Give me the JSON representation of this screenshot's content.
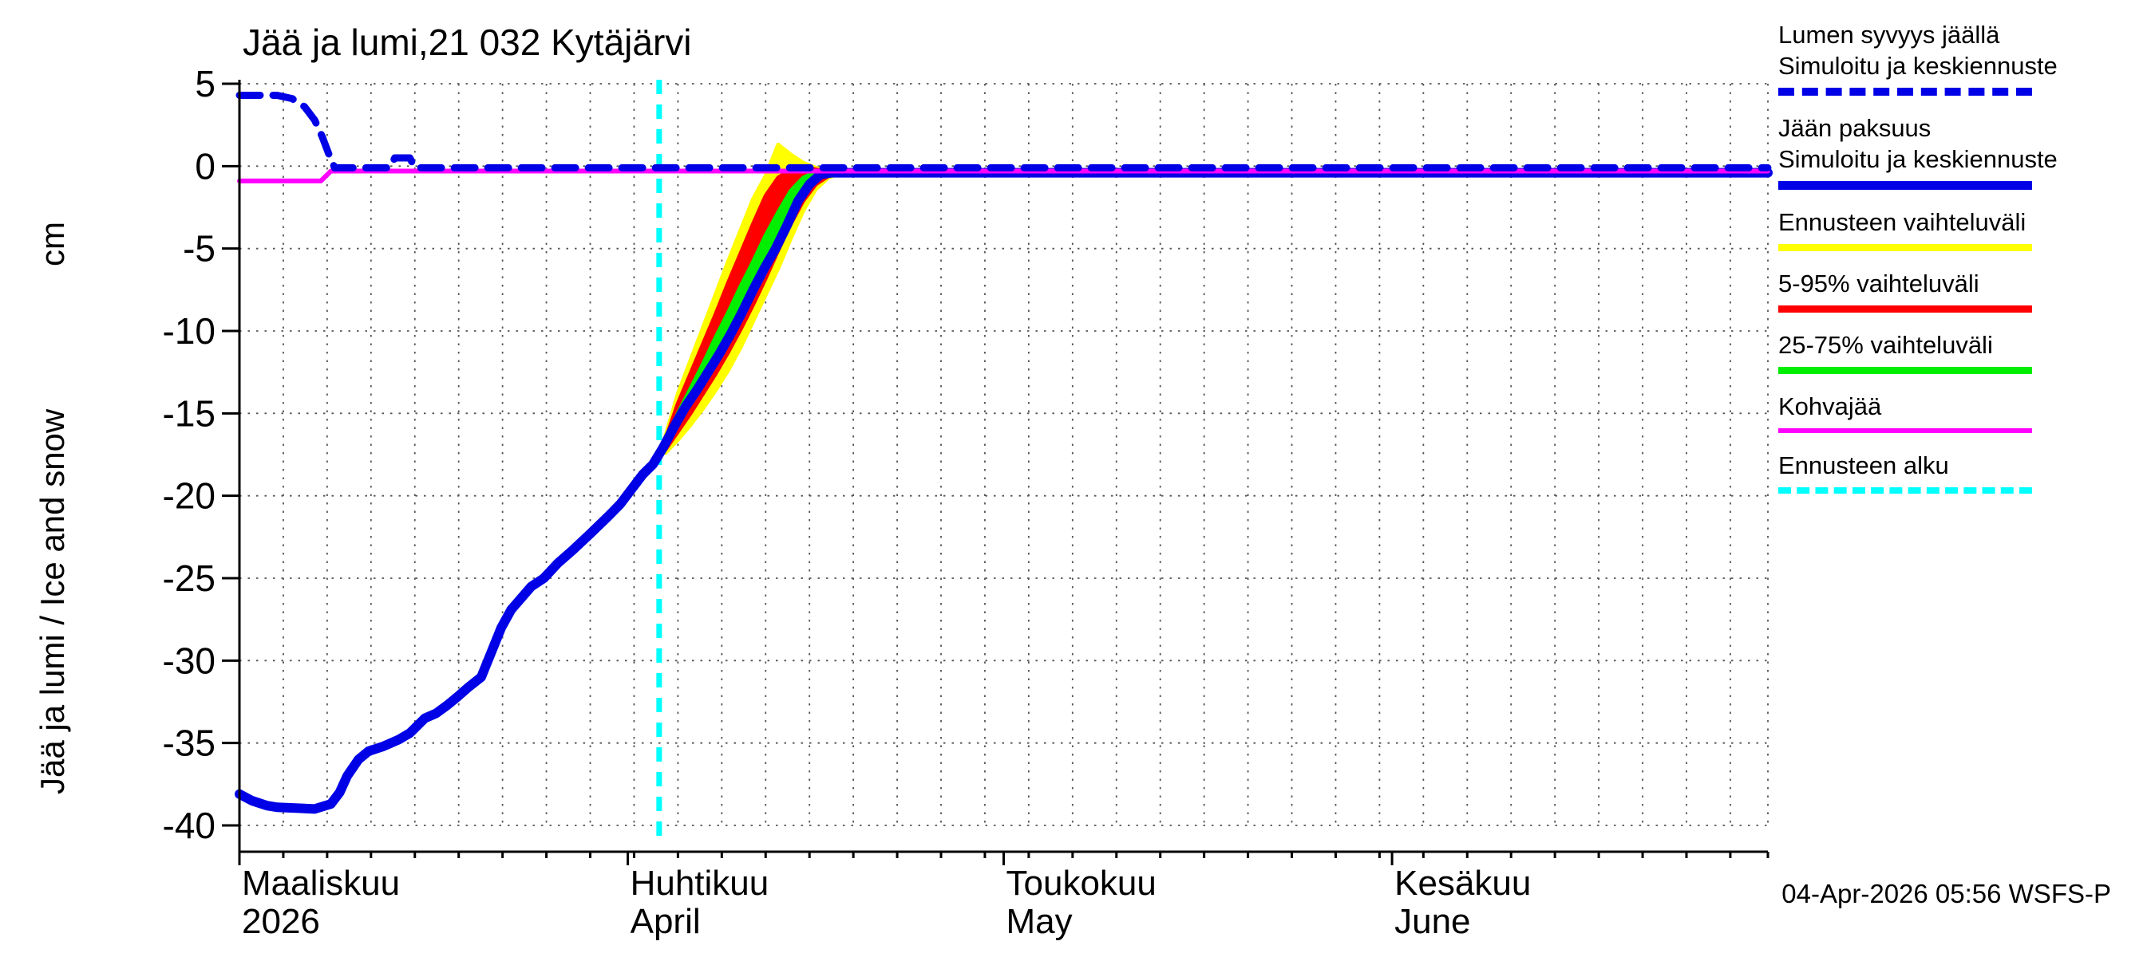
{
  "title": "Jää ja lumi,21 032 Kytäjärvi",
  "y_axis": {
    "label": "Jää ja lumi / Ice and snow",
    "unit": "cm"
  },
  "footer": {
    "timestamp": "04-Apr-2026 05:56 WSFS-P"
  },
  "colors": {
    "simulated_blue": "#0000e6",
    "kohvajaa_magenta": "#ff00ff",
    "range_yellow": "#ffff00",
    "range_red": "#ff0000",
    "range_green": "#00ee00",
    "forecast_start_cyan": "#00ffff",
    "axis_black": "#000000"
  },
  "legend": [
    {
      "title": "Lumen syvyys jäällä",
      "subtitle": "Simuloitu ja keskiennuste",
      "color": "#0000e6",
      "style": "dashed",
      "thickness": 10
    },
    {
      "title": "Jään paksuus",
      "subtitle": "Simuloitu ja keskiennuste",
      "color": "#0000e6",
      "style": "solid",
      "thickness": 11
    },
    {
      "title": "Ennusteen vaihteluväli",
      "color": "#ffff00",
      "style": "solid",
      "thickness": 9
    },
    {
      "title": "5-95% vaihteluväli",
      "color": "#ff0000",
      "style": "solid",
      "thickness": 9
    },
    {
      "title": "25-75% vaihteluväli",
      "color": "#00ee00",
      "style": "solid",
      "thickness": 9
    },
    {
      "title": "Kohvajää",
      "color": "#ff00ff",
      "style": "solid",
      "thickness": 6
    },
    {
      "title": "Ennusteen alku",
      "color": "#00ffff",
      "style": "dashed",
      "thickness": 8
    }
  ],
  "chart_data": {
    "type": "line",
    "title": "Jää ja lumi,21 032 Kytäjärvi",
    "ylabel": "Jää ja lumi / Ice and snow (cm)",
    "xlabel": "",
    "x_unit": "days from 2026-03-01",
    "x_range": [
      0,
      122
    ],
    "ylim": [
      -40,
      5
    ],
    "grid": true,
    "y_ticks": [
      5,
      0,
      -5,
      -10,
      -15,
      -20,
      -25,
      -30,
      -35,
      -40
    ],
    "x_ticks": [
      {
        "day": 0,
        "line1": "Maaliskuu",
        "line2": "2026"
      },
      {
        "day": 31,
        "line1": "Huhtikuu",
        "line2": "April"
      },
      {
        "day": 61,
        "line1": "Toukokuu",
        "line2": "May"
      },
      {
        "day": 92,
        "line1": "Kesäkuu",
        "line2": "June"
      }
    ],
    "forecast_start_day": 33.5,
    "series": [
      {
        "name": "ice-thickness-simulated",
        "label": "Jään paksuus - Simuloitu ja keskiennuste",
        "color": "#0000e6",
        "style": "solid",
        "width": 12,
        "points": [
          [
            0,
            -38.1
          ],
          [
            1,
            -38.5
          ],
          [
            2.2,
            -38.8
          ],
          [
            3,
            -38.9
          ],
          [
            6,
            -39
          ],
          [
            7.3,
            -38.7
          ],
          [
            8,
            -38
          ],
          [
            8.6,
            -37
          ],
          [
            9.5,
            -36
          ],
          [
            10.3,
            -35.5
          ],
          [
            11.5,
            -35.2
          ],
          [
            12.7,
            -34.8
          ],
          [
            13.6,
            -34.4
          ],
          [
            14.8,
            -33.5
          ],
          [
            15.7,
            -33.2
          ],
          [
            16.6,
            -32.7
          ],
          [
            17.4,
            -32.2
          ],
          [
            18.3,
            -31.6
          ],
          [
            19.3,
            -31
          ],
          [
            20.1,
            -29.5
          ],
          [
            20.9,
            -28
          ],
          [
            21.7,
            -26.9
          ],
          [
            22.5,
            -26.2
          ],
          [
            23.3,
            -25.5
          ],
          [
            24.3,
            -25
          ],
          [
            25.4,
            -24.1
          ],
          [
            26.6,
            -23.3
          ],
          [
            28,
            -22.3
          ],
          [
            29.5,
            -21.2
          ],
          [
            30.4,
            -20.5
          ],
          [
            31.3,
            -19.6
          ],
          [
            32.2,
            -18.7
          ],
          [
            33,
            -18.1
          ],
          [
            33.8,
            -17.1
          ],
          [
            34.7,
            -15.8
          ],
          [
            35.6,
            -14.6
          ],
          [
            36.5,
            -13.6
          ],
          [
            37.4,
            -12.5
          ],
          [
            38.3,
            -11.4
          ],
          [
            39.2,
            -10.2
          ],
          [
            40.1,
            -8.9
          ],
          [
            41,
            -7.5
          ],
          [
            41.9,
            -6.2
          ],
          [
            42.8,
            -5
          ],
          [
            43.7,
            -3.6
          ],
          [
            44.6,
            -2.1
          ],
          [
            45.5,
            -1.1
          ],
          [
            46.4,
            -0.5
          ],
          [
            47.3,
            -0.4
          ],
          [
            122,
            -0.4
          ]
        ]
      },
      {
        "name": "kohvajaa-frazil-ice",
        "label": "Kohvajää",
        "color": "#ff00ff",
        "style": "solid",
        "width": 6,
        "points": [
          [
            0,
            -0.9
          ],
          [
            6.5,
            -0.9
          ],
          [
            7.3,
            -0.3
          ],
          [
            122,
            -0.3
          ]
        ]
      },
      {
        "name": "snow-depth-on-ice-simulated",
        "label": "Lumen syvyys jäällä - Simuloitu ja keskiennuste",
        "color": "#0000e6",
        "style": "dashed",
        "width": 9,
        "points": [
          [
            0,
            4.3
          ],
          [
            3,
            4.3
          ],
          [
            4.2,
            4.1
          ],
          [
            5.2,
            3.6
          ],
          [
            6,
            2.8
          ],
          [
            6.6,
            1.8
          ],
          [
            7.1,
            0.8
          ],
          [
            7.6,
            -0.1
          ],
          [
            12,
            -0.1
          ],
          [
            12.4,
            0.5
          ],
          [
            13.6,
            0.5
          ],
          [
            14,
            -0.1
          ],
          [
            122,
            -0.1
          ]
        ]
      }
    ],
    "bands": [
      {
        "name": "ennusteen-vaihteluvali",
        "label": "Ennusteen vaihteluväli",
        "color": "#ffff00",
        "days": [
          34,
          35,
          36,
          37,
          38,
          39,
          40,
          41,
          42,
          43,
          44,
          45,
          46,
          47,
          48
        ],
        "upper": [
          -16.4,
          -13.8,
          -11.8,
          -9.8,
          -7.8,
          -5.8,
          -3.9,
          -2.0,
          -0.6,
          1.3,
          0.7,
          0.2,
          -0.1,
          -0.3,
          -0.4
        ],
        "lower": [
          -17.4,
          -16.6,
          -15.7,
          -14.7,
          -13.6,
          -12.4,
          -11.0,
          -9.4,
          -7.8,
          -6.2,
          -4.4,
          -2.7,
          -1.4,
          -0.7,
          -0.4
        ]
      },
      {
        "name": "5-95-vaihteluvali",
        "label": "5-95% vaihteluväli",
        "color": "#ff0000",
        "days": [
          34,
          35,
          36,
          37,
          38,
          39,
          40,
          41,
          42,
          43,
          44,
          45,
          46,
          47,
          48
        ],
        "upper": [
          -16.6,
          -14.4,
          -12.6,
          -10.8,
          -9.0,
          -7.1,
          -5.3,
          -3.5,
          -1.8,
          -0.7,
          -0.2,
          -0.1,
          -0.2,
          -0.35,
          -0.4
        ],
        "lower": [
          -17.2,
          -16.1,
          -15.0,
          -13.8,
          -12.6,
          -11.3,
          -9.9,
          -8.4,
          -6.8,
          -5.1,
          -3.5,
          -2.1,
          -1.1,
          -0.6,
          -0.4
        ]
      },
      {
        "name": "25-75-vaihteluvali",
        "label": "25-75% vaihteluväli",
        "color": "#00ee00",
        "days": [
          34,
          35,
          36,
          37,
          38,
          39,
          40,
          41,
          42,
          43,
          44,
          45,
          46,
          47,
          48
        ],
        "upper": [
          -16.8,
          -15.0,
          -13.5,
          -12.0,
          -10.4,
          -8.9,
          -7.3,
          -5.8,
          -4.2,
          -2.8,
          -1.5,
          -0.7,
          -0.35,
          -0.4,
          -0.4
        ],
        "lower": [
          -17.0,
          -15.6,
          -14.4,
          -13.2,
          -11.9,
          -10.6,
          -9.2,
          -7.7,
          -6.1,
          -4.5,
          -3.0,
          -1.7,
          -0.8,
          -0.5,
          -0.4
        ]
      }
    ]
  }
}
